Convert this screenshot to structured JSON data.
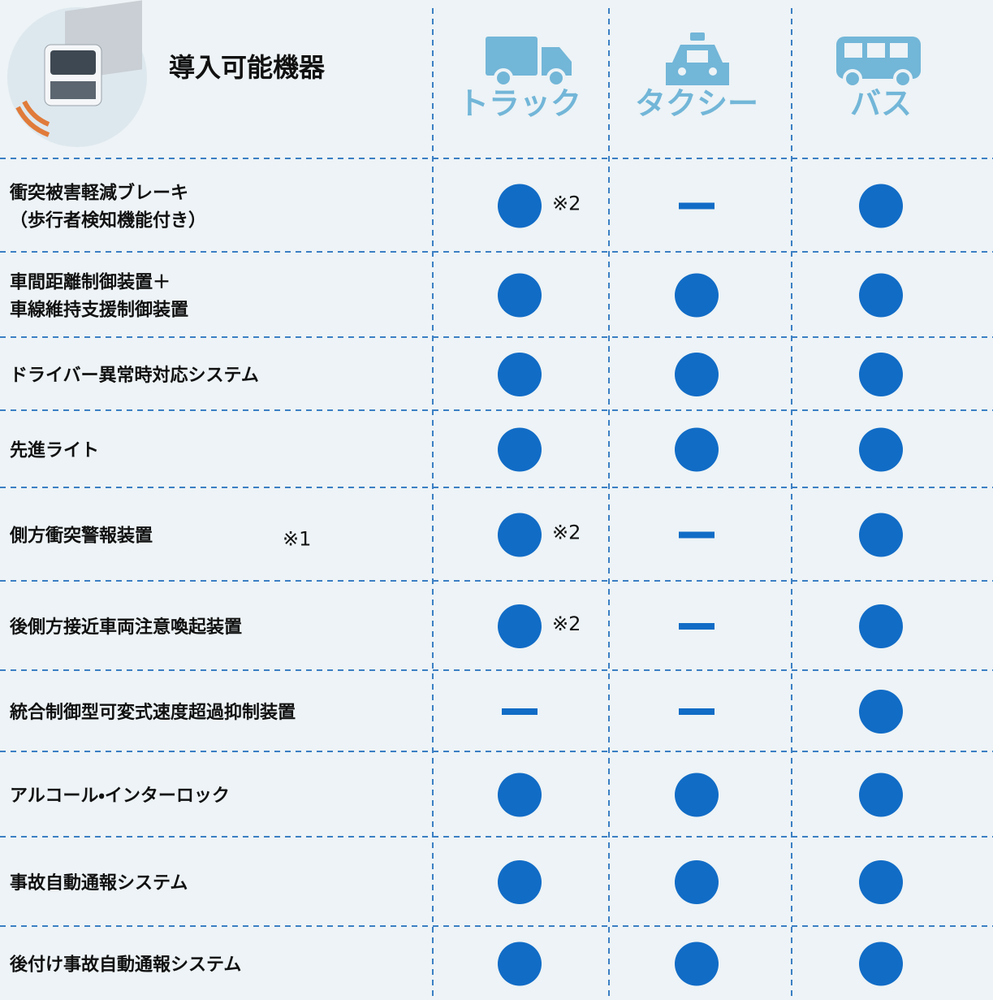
{
  "header": {
    "title": "導入可能機器",
    "columns": [
      "トラック",
      "タクシー",
      "バス"
    ]
  },
  "rows": [
    {
      "label": [
        "衝突被害軽減ブレーキ",
        "（歩行者検知機能付き）"
      ],
      "cells": [
        {
          "available": true,
          "note": "※2"
        },
        {
          "available": false
        },
        {
          "available": true
        }
      ]
    },
    {
      "label": [
        "車間距離制御装置＋",
        "車線維持支援制御装置"
      ],
      "cells": [
        {
          "available": true
        },
        {
          "available": true
        },
        {
          "available": true
        }
      ]
    },
    {
      "label": [
        "ドライバー異常時対応システム"
      ],
      "cells": [
        {
          "available": true
        },
        {
          "available": true
        },
        {
          "available": true
        }
      ]
    },
    {
      "label": [
        "先進ライト"
      ],
      "cells": [
        {
          "available": true
        },
        {
          "available": true
        },
        {
          "available": true
        }
      ]
    },
    {
      "label": [
        "側方衝突警報装置"
      ],
      "note": "※1",
      "cells": [
        {
          "available": true,
          "note": "※2"
        },
        {
          "available": false
        },
        {
          "available": true
        }
      ]
    },
    {
      "label": [
        "後側方接近車両注意喚起装置"
      ],
      "cells": [
        {
          "available": true,
          "note": "※2"
        },
        {
          "available": false
        },
        {
          "available": true
        }
      ]
    },
    {
      "label": [
        "統合制御型可変式速度超過抑制装置"
      ],
      "cells": [
        {
          "available": false
        },
        {
          "available": false
        },
        {
          "available": true
        }
      ]
    },
    {
      "label": [
        "アルコール・インターロック"
      ],
      "cells": [
        {
          "available": true
        },
        {
          "available": true
        },
        {
          "available": true
        }
      ]
    },
    {
      "label": [
        "事故自動通報システム"
      ],
      "cells": [
        {
          "available": true
        },
        {
          "available": true
        },
        {
          "available": true
        }
      ]
    },
    {
      "label": [
        "後付け事故自動通報システム"
      ],
      "cells": [
        {
          "available": true
        },
        {
          "available": true
        },
        {
          "available": true
        }
      ]
    }
  ]
}
